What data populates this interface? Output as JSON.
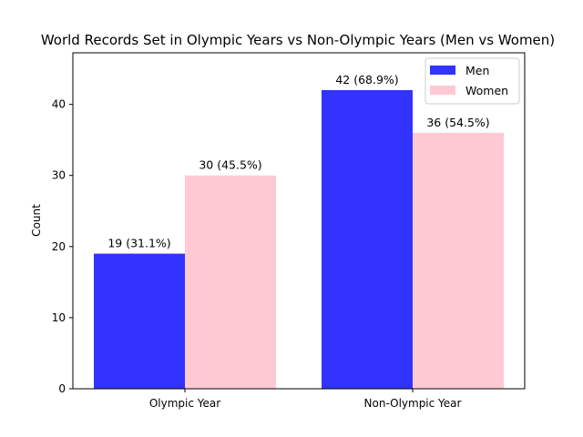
{
  "chart_data": {
    "type": "bar",
    "title": "World Records Set in Olympic Years vs Non-Olympic Years (Men vs Women)",
    "xlabel": "",
    "ylabel": "Count",
    "categories": [
      "Olympic Year",
      "Non-Olympic Year"
    ],
    "ylim": [
      0,
      47.25
    ],
    "yticks": [
      0,
      10,
      20,
      30,
      40
    ],
    "grid": false,
    "legend_position": "top-right",
    "series": [
      {
        "name": "Men",
        "color": "#3333ff",
        "values": [
          19,
          42
        ],
        "labels": [
          "19 (31.1%)",
          "42 (68.9%)"
        ]
      },
      {
        "name": "Women",
        "color": "#ffc9d4",
        "values": [
          30,
          36
        ],
        "labels": [
          "30 (45.5%)",
          "36 (54.5%)"
        ]
      }
    ]
  }
}
